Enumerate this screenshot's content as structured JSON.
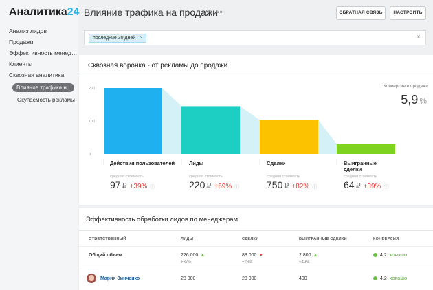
{
  "app": {
    "logo_main": "Аналитика",
    "logo_accent": "24"
  },
  "sidebar": {
    "items": [
      {
        "label": "Анализ лидов"
      },
      {
        "label": "Продажи"
      },
      {
        "label": "Эффективность менеджеров"
      },
      {
        "label": "Клиенты"
      },
      {
        "label": "Сквозная аналитика"
      }
    ],
    "sub_items": [
      {
        "label": "Влияние трафика на продажи",
        "active": true
      },
      {
        "label": "Окупаемость рекламы",
        "active": false
      }
    ]
  },
  "header": {
    "title": "Влияние трафика на продажи",
    "feedback_button": "ОБРАТНАЯ СВЯЗЬ",
    "settings_button": "НАСТРОИТЬ"
  },
  "filter": {
    "tag": "последние 30 дней"
  },
  "funnel": {
    "title": "Сквозная воронка - от рекламы до продажи",
    "conversion_label": "Конверсия в продажи",
    "conversion_value": "5,9",
    "conversion_unit": "%",
    "avg_cost_label": "средняя стоимость",
    "currency": "₽",
    "stages": [
      {
        "name": "Действия пользователей",
        "cost": "97",
        "change": "+39%"
      },
      {
        "name": "Лиды",
        "cost": "220",
        "change": "+69%"
      },
      {
        "name": "Сделки",
        "cost": "750",
        "change": "+82%"
      },
      {
        "name": "Выигранные сделки",
        "cost": "64",
        "change": "+39%"
      }
    ],
    "colors": [
      "#1fb0f0",
      "#1ccfc2",
      "#fcc200",
      "#7ed321"
    ],
    "connector_color": "#d4f1f7"
  },
  "chart_data": {
    "type": "bar",
    "categories": [
      "Действия пользователей",
      "Лиды",
      "Сделки",
      "Выигранные сделки"
    ],
    "values": [
      200,
      145,
      103,
      30
    ],
    "ylim": [
      0,
      200
    ],
    "yticks": [
      "200",
      "100",
      "0"
    ]
  },
  "efficiency": {
    "title": "Эффективность обработки лидов по менеджерам",
    "columns": [
      "ОТВЕТСТВЕННЫЙ",
      "ЛИДЫ",
      "СДЕЛКИ",
      "ВЫИГРАННЫЕ СДЕЛКИ",
      "КОНВЕРСИЯ"
    ],
    "rows": [
      {
        "name": "Общий объем",
        "leads": "226 000",
        "leads_change": "+37%",
        "deals": "88 000",
        "deals_change": "+23%",
        "won": "2 800",
        "won_change": "+49%",
        "conversion": "4.2",
        "status": "ХОРОШО"
      },
      {
        "name": "Мария Зинченко",
        "leads": "28 000",
        "deals": "28 000",
        "won": "400",
        "conversion": "4.2",
        "status": "ХОРОШО"
      }
    ]
  }
}
